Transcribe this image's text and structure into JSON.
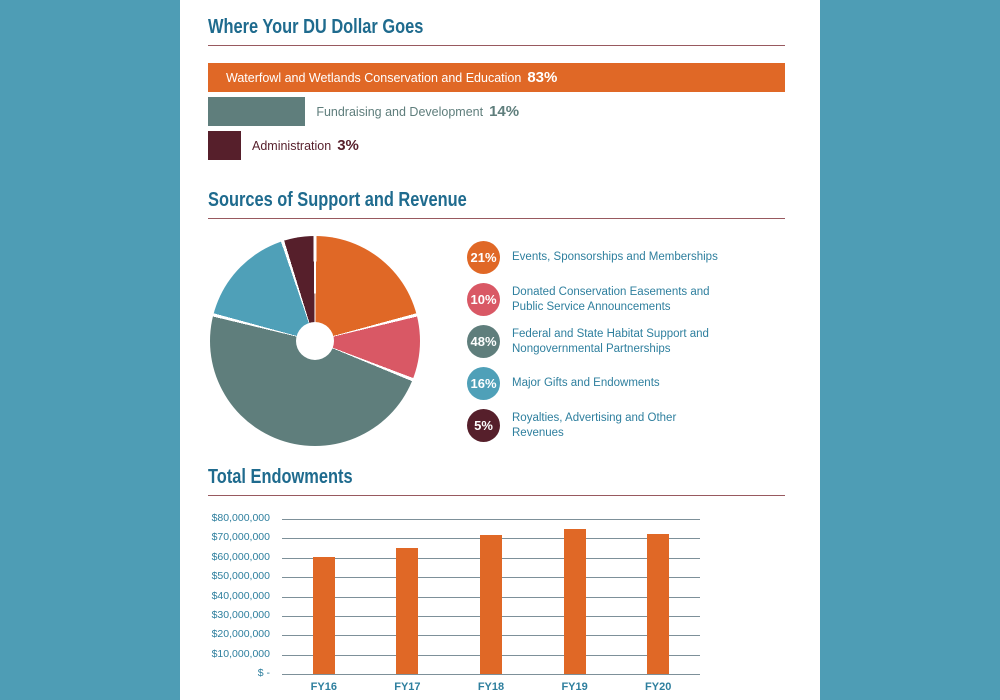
{
  "theme": {
    "page_background": "#4E9DB5",
    "panel_background": "#FFFFFF",
    "heading_color": "#1F6B8E",
    "rule_color": "#98595F",
    "axis_text_color": "#2E7F9E",
    "gridline_color": "#7D9099"
  },
  "sections": {
    "where_dollar_goes": {
      "title": "Where Your DU Dollar Goes"
    },
    "sources": {
      "title": "Sources of Support and Revenue"
    },
    "endowments": {
      "title": "Total Endowments"
    }
  },
  "chart_data": [
    {
      "id": "du-dollar-allocation",
      "type": "bar",
      "orientation": "horizontal",
      "title": "Where Your DU Dollar Goes",
      "categories": [
        "Waterfowl and Wetlands Conservation and Education",
        "Fundraising and Development",
        "Administration"
      ],
      "values": [
        83,
        14,
        3
      ],
      "value_labels": [
        "83%",
        "14%",
        "3%"
      ],
      "colors": [
        "#E06826",
        "#5F7E7C",
        "#561F2B"
      ],
      "label_inside": [
        true,
        false,
        false
      ],
      "xlim": [
        0,
        83
      ],
      "grid": false
    },
    {
      "id": "sources-of-support",
      "type": "pie",
      "title": "Sources of Support and Revenue",
      "donut_hole_ratio": 0.18,
      "start_angle_deg": 0,
      "direction": "clockwise",
      "legend_position": "right",
      "slices": [
        {
          "label": "Events, Sponsorships and Memberships",
          "value": 21,
          "pct_label": "21%",
          "color": "#E06826"
        },
        {
          "label": "Donated Conservation Easements and Public Service Announcements",
          "value": 10,
          "pct_label": "10%",
          "color": "#D95865"
        },
        {
          "label": "Federal and State Habitat Support and Nongovernmental Partnerships",
          "value": 48,
          "pct_label": "48%",
          "color": "#5F7E7C"
        },
        {
          "label": "Major Gifts and Endowments",
          "value": 16,
          "pct_label": "16%",
          "color": "#4FA0B8"
        },
        {
          "label": "Royalties, Advertising and Other Revenues",
          "value": 5,
          "pct_label": "5%",
          "color": "#561F2B"
        }
      ]
    },
    {
      "id": "total-endowments",
      "type": "bar",
      "orientation": "vertical",
      "title": "Total Endowments",
      "categories": [
        "FY16",
        "FY17",
        "FY18",
        "FY19",
        "FY20"
      ],
      "values": [
        60500000,
        65000000,
        72000000,
        75000000,
        72500000
      ],
      "bar_color": "#E06826",
      "ylabel_ticks": [
        "$80,000,000",
        "$70,000,000",
        "$60,000,000",
        "$50,000,000",
        "$40,000,000",
        "$30,000,000",
        "$20,000,000",
        "$10,000,000",
        "$ -"
      ],
      "ylim": [
        0,
        80000000
      ],
      "grid": true
    }
  ]
}
